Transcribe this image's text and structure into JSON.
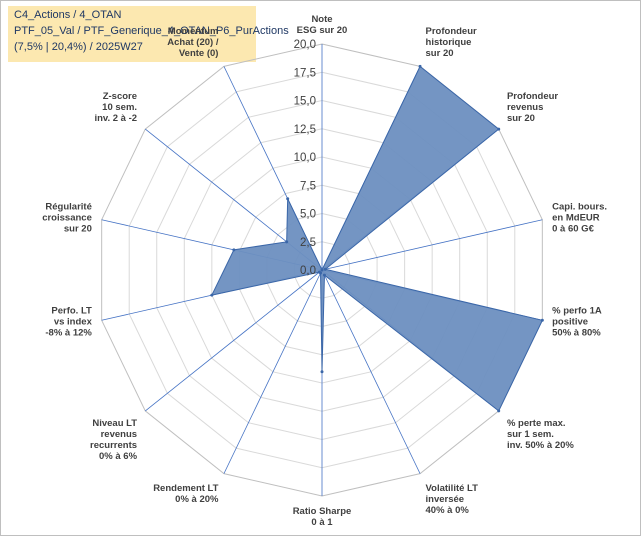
{
  "title": {
    "line1": "C4_Actions / 4_OTAN",
    "line2": "PTF_05_Val / PTF_Generique_4_OTAN_P6_PurActions",
    "line3": "(7,5% | 20,4%) / 2025W27"
  },
  "chart_data": {
    "type": "radar",
    "rmax": 20,
    "ticks": [
      "0,0",
      "2,5",
      "5,0",
      "7,5",
      "10,0",
      "12,5",
      "15,0",
      "17,5",
      "20,0"
    ],
    "axes": [
      {
        "lines": [
          "Note",
          "ESG sur 20"
        ],
        "value": 0
      },
      {
        "lines": [
          "Profondeur",
          "historique",
          "sur 20"
        ],
        "value": 20
      },
      {
        "lines": [
          "Profondeur",
          "revenus",
          "sur 20"
        ],
        "value": 20
      },
      {
        "lines": [
          "Capi. bours.",
          "en MdEUR",
          "0 à 60 G€"
        ],
        "value": 0.3
      },
      {
        "lines": [
          "% perfo 1A",
          "positive",
          "50% à 80%"
        ],
        "value": 20
      },
      {
        "lines": [
          "% perte max.",
          "sur 1 sem.",
          "inv. 50% à 20%"
        ],
        "value": 20
      },
      {
        "lines": [
          "Volatilité LT",
          "inversée",
          "40% à 0%"
        ],
        "value": 0.5
      },
      {
        "lines": [
          "Ratio Sharpe",
          "0 à 1"
        ],
        "value": 9
      },
      {
        "lines": [
          "Rendement LT",
          "0% à 20%"
        ],
        "value": 0.3
      },
      {
        "lines": [
          "Niveau LT",
          "revenus",
          "recurrents",
          "0% à 6%"
        ],
        "value": 0.3
      },
      {
        "lines": [
          "Perfo. LT",
          "vs index",
          "-8% à 12%"
        ],
        "value": 10
      },
      {
        "lines": [
          "Régularité",
          "croissance",
          "sur 20"
        ],
        "value": 8
      },
      {
        "lines": [
          "Z-score",
          "10 sem.",
          "inv. 2 à -2"
        ],
        "value": 4
      },
      {
        "lines": [
          "Momentum",
          "Achat (20) /",
          "Vente (0)"
        ],
        "value": 7
      }
    ],
    "colors": {
      "fill": "#6d8fc0",
      "stroke": "#3a66a8",
      "grid": "#d9d9d9",
      "spoke": "#4472c4"
    }
  }
}
